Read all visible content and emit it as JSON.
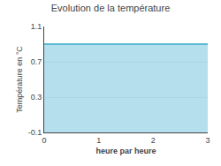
{
  "chart_data": {
    "type": "area",
    "title": "Evolution de la température",
    "x_label": "heure par heure",
    "y_label": "Température en °C",
    "x": [
      0,
      3
    ],
    "values": [
      0.9,
      0.9
    ],
    "color": "#5bb8d4",
    "xlim": [
      0,
      3
    ],
    "ylim": [
      -0.1,
      1.1
    ],
    "xticks": [
      0,
      1,
      2,
      3
    ],
    "yticks": [
      -0.1,
      0.3,
      0.7,
      1.1
    ],
    "grid": "y"
  }
}
